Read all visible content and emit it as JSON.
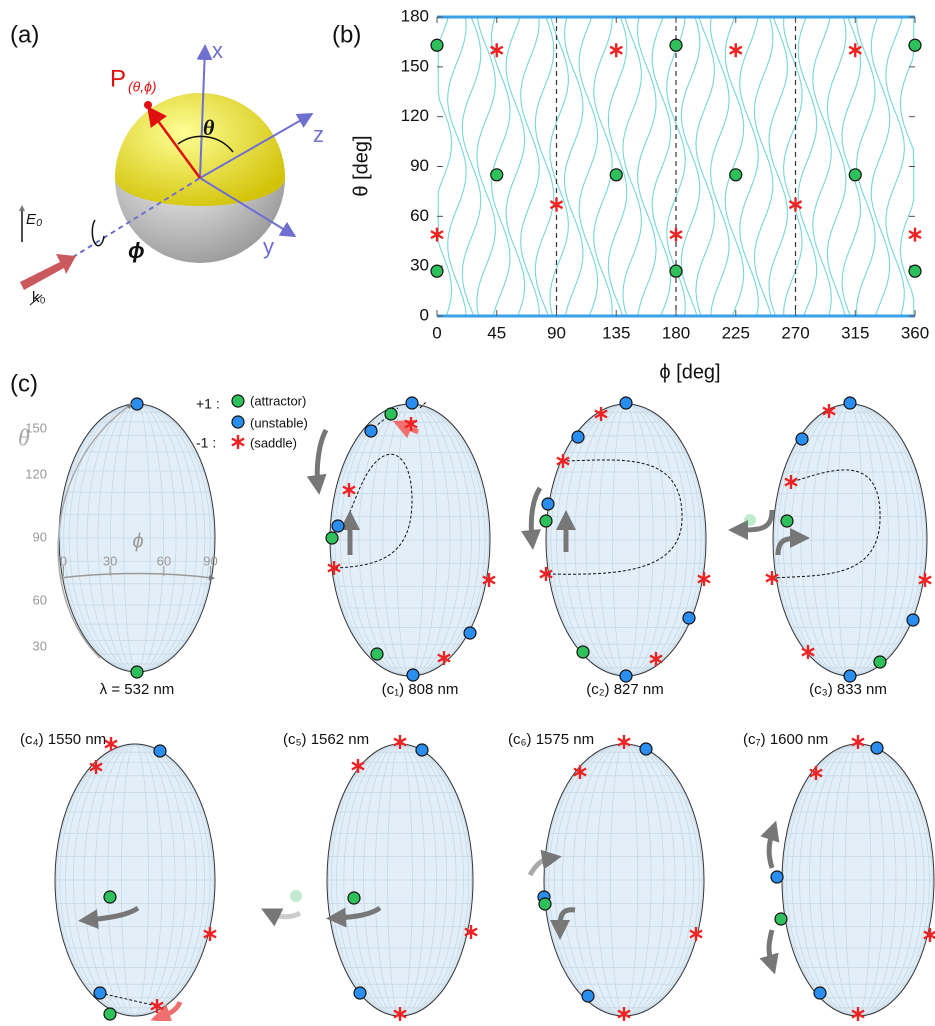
{
  "panel_a": {
    "label": "(a)",
    "x_axis": "x",
    "y_axis": "y",
    "z_axis": "z",
    "theta": "θ",
    "phi": "ϕ",
    "field": "E₀",
    "wave": "k₀",
    "point": "P",
    "point_args": "(θ,ϕ)"
  },
  "chart_data": {
    "type": "stream",
    "panel_label": "(b)",
    "x_label": "ϕ [deg]",
    "y_label": "θ [deg]",
    "xlim": [
      0,
      360
    ],
    "ylim": [
      0,
      180
    ],
    "xticks": [
      0,
      45,
      90,
      135,
      180,
      225,
      270,
      315,
      360
    ],
    "yticks": [
      0,
      30,
      60,
      90,
      120,
      150,
      180
    ],
    "dashed_x": [
      90,
      180,
      270
    ],
    "attractors": {
      "color": "#2ec05a",
      "x": [
        0,
        180,
        360,
        45,
        135,
        225,
        315,
        0,
        180,
        360
      ],
      "y": [
        163,
        163,
        163,
        85,
        85,
        85,
        85,
        27,
        27,
        27
      ]
    },
    "saddles": {
      "color": "#ee2222",
      "x": [
        45,
        135,
        225,
        315,
        90,
        270,
        0,
        180,
        360
      ],
      "y": [
        160,
        160,
        160,
        160,
        67,
        67,
        49,
        49,
        49
      ]
    },
    "stream_color": "#55cccc"
  },
  "panel_c": {
    "label": "(c)",
    "legend": {
      "plus": "+1 :",
      "attractor": "(attractor)",
      "unstable": "(unstable)",
      "minus": "-1 :",
      "saddle": "(saddle)"
    },
    "theta_symbol": "θ",
    "phi_symbol": "ϕ",
    "theta_ticks": [
      150,
      120,
      90,
      60,
      30
    ],
    "phi_ticks": [
      0,
      30,
      60,
      90
    ],
    "captions": [
      "λ = 532 nm",
      "(c₁) 808 nm",
      "(c₂) 827 nm",
      "(c₃) 833 nm",
      "(c₄) 1550 nm",
      "(c₅) 1562 nm",
      "(c₆) 1575 nm",
      "(c₇) 1600 nm"
    ]
  }
}
